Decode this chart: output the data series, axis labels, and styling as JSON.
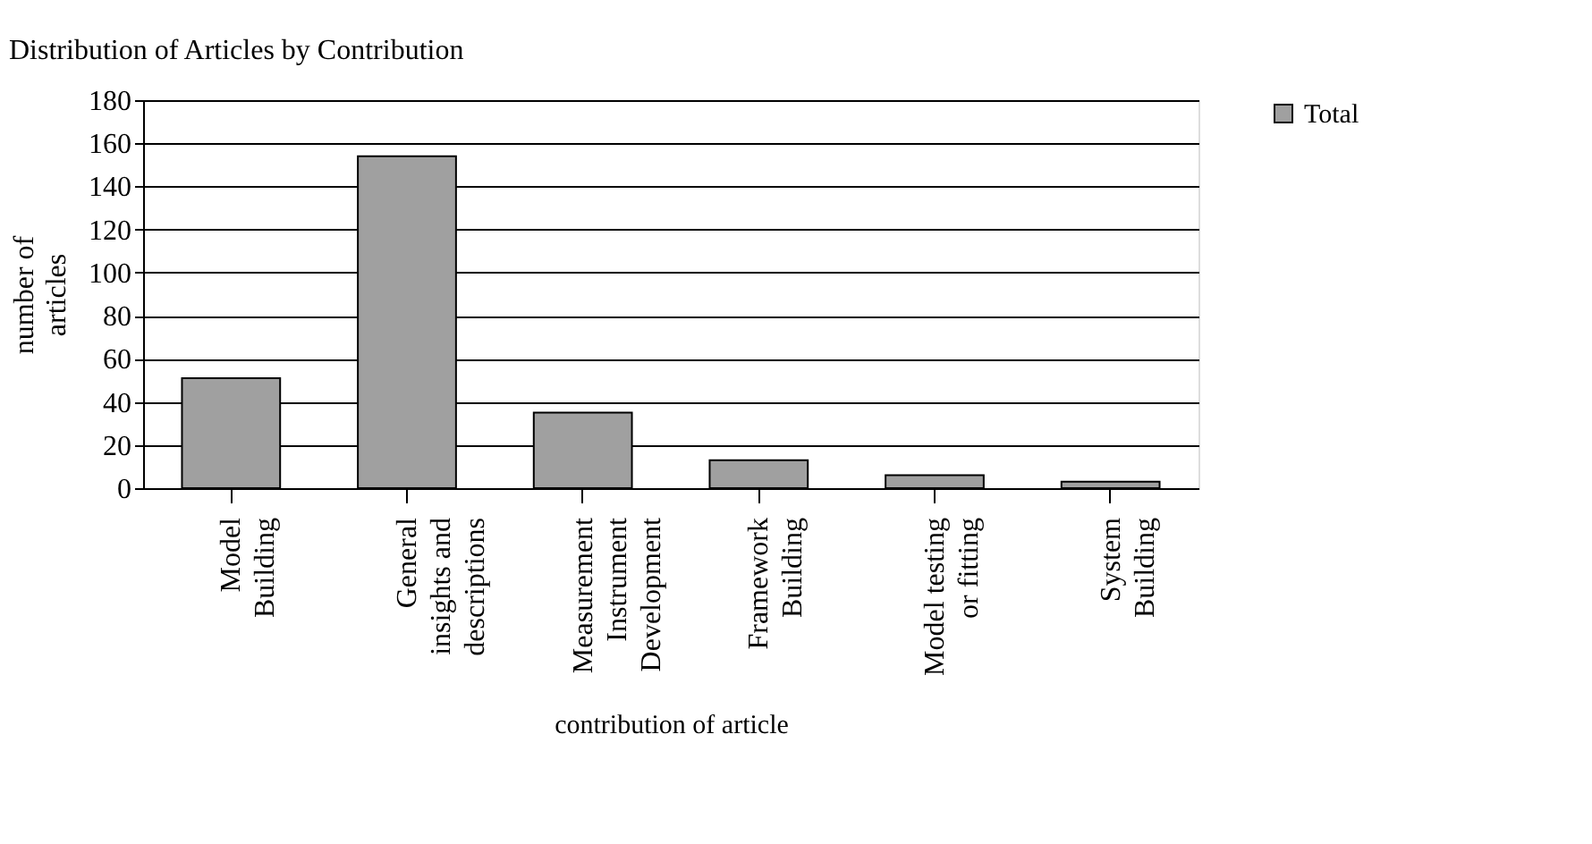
{
  "chart_data": {
    "type": "bar",
    "title": "Distribution of Articles by Contribution",
    "xlabel": "contribution of article",
    "ylabel": "number of\narticles",
    "categories": [
      "Model\nBuilding",
      "General\ninsights and\ndescriptions",
      "Measurement\nInstrument\nDevelopment",
      "Framework\nBuilding",
      "Model testing\nor fitting",
      "System\nBuilding"
    ],
    "series": [
      {
        "name": "Total",
        "color": "#a0a0a0",
        "values": [
          51,
          154,
          35,
          13,
          6,
          3
        ]
      }
    ],
    "ylim": [
      0,
      180
    ],
    "yticks": [
      0,
      20,
      40,
      60,
      80,
      100,
      120,
      140,
      160,
      180
    ],
    "grid": "y",
    "legend": "right"
  }
}
